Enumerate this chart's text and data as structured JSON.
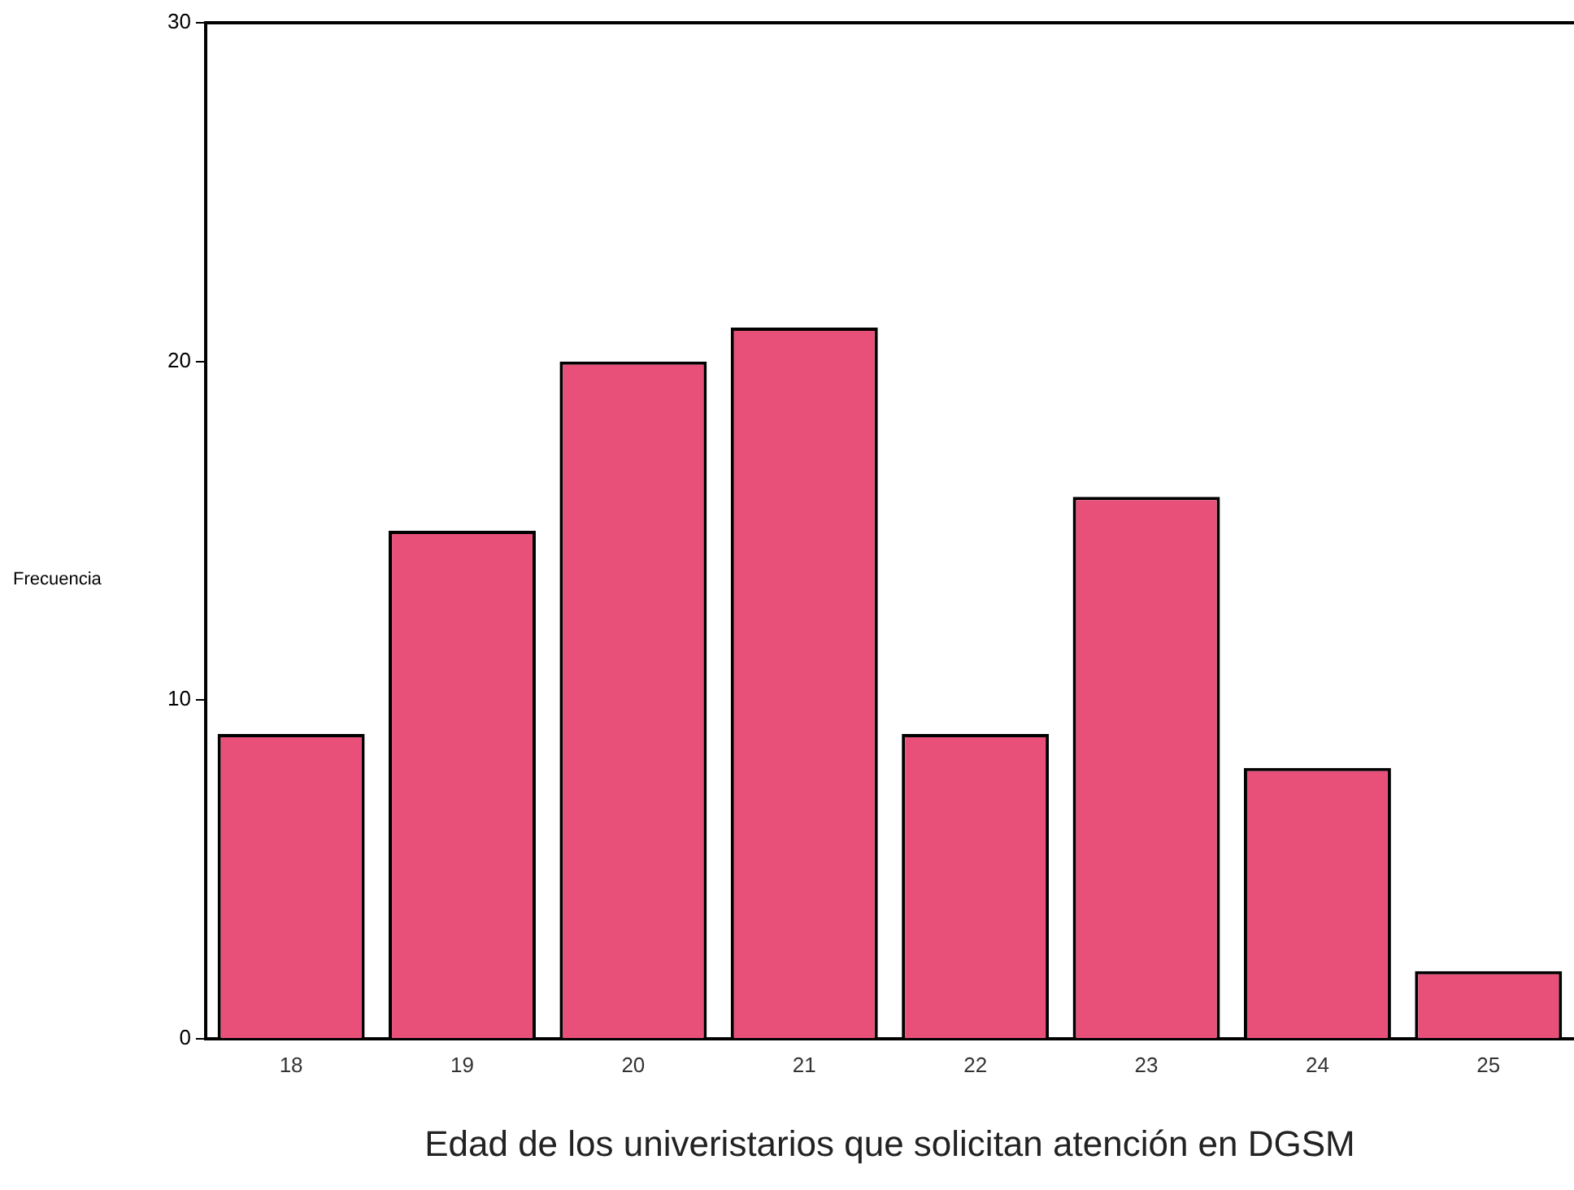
{
  "chart_data": {
    "type": "bar",
    "xlabel": "Edad de los univeristarios que solicitan atención en DGSM",
    "ylabel": "Frecuencia",
    "categories": [
      "18",
      "19",
      "20",
      "21",
      "22",
      "23",
      "24",
      "25"
    ],
    "values": [
      9,
      15,
      20,
      21,
      9,
      16,
      8,
      2
    ],
    "color": "#e8507a",
    "ylim": [
      0,
      30
    ],
    "yticks": [
      0,
      10,
      20,
      30
    ],
    "grid": false,
    "legend": false
  }
}
